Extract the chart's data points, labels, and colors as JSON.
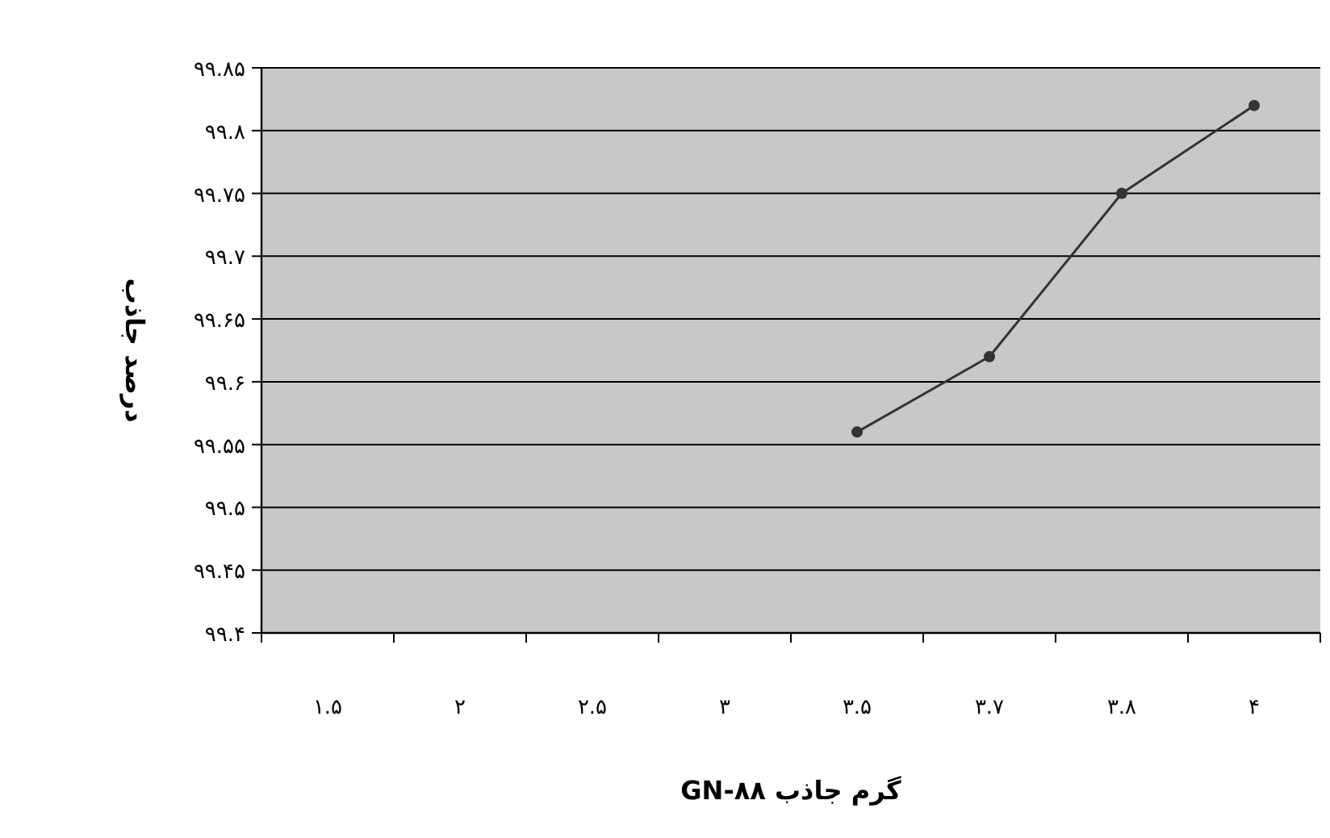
{
  "chart_data": {
    "type": "line",
    "xlabel": "گرم جاذب GN-۸۸",
    "ylabel": "درصد جاذب",
    "categories": [
      "۱.۵",
      "۲",
      "۲.۵",
      "۳",
      "۳.۵",
      "۳.۷",
      "۳.۸",
      "۴"
    ],
    "series": [
      {
        "color": "#333333",
        "values": [
          null,
          null,
          null,
          null,
          99.56,
          99.62,
          99.75,
          99.82
        ]
      }
    ],
    "ylim": [
      99.4,
      99.85
    ],
    "yticks": [
      {
        "value": 99.4,
        "label": "۹۹.۴"
      },
      {
        "value": 99.45,
        "label": "۹۹.۴۵"
      },
      {
        "value": 99.5,
        "label": "۹۹.۵"
      },
      {
        "value": 99.55,
        "label": "۹۹.۵۵"
      },
      {
        "value": 99.6,
        "label": "۹۹.۶"
      },
      {
        "value": 99.65,
        "label": "۹۹.۶۵"
      },
      {
        "value": 99.7,
        "label": "۹۹.۷"
      },
      {
        "value": 99.75,
        "label": "۹۹.۷۵"
      },
      {
        "value": 99.8,
        "label": "۹۹.۸"
      },
      {
        "value": 99.85,
        "label": "۹۹.۸۵"
      }
    ],
    "grid": "y",
    "marker": "circle",
    "line_style": "solid"
  }
}
